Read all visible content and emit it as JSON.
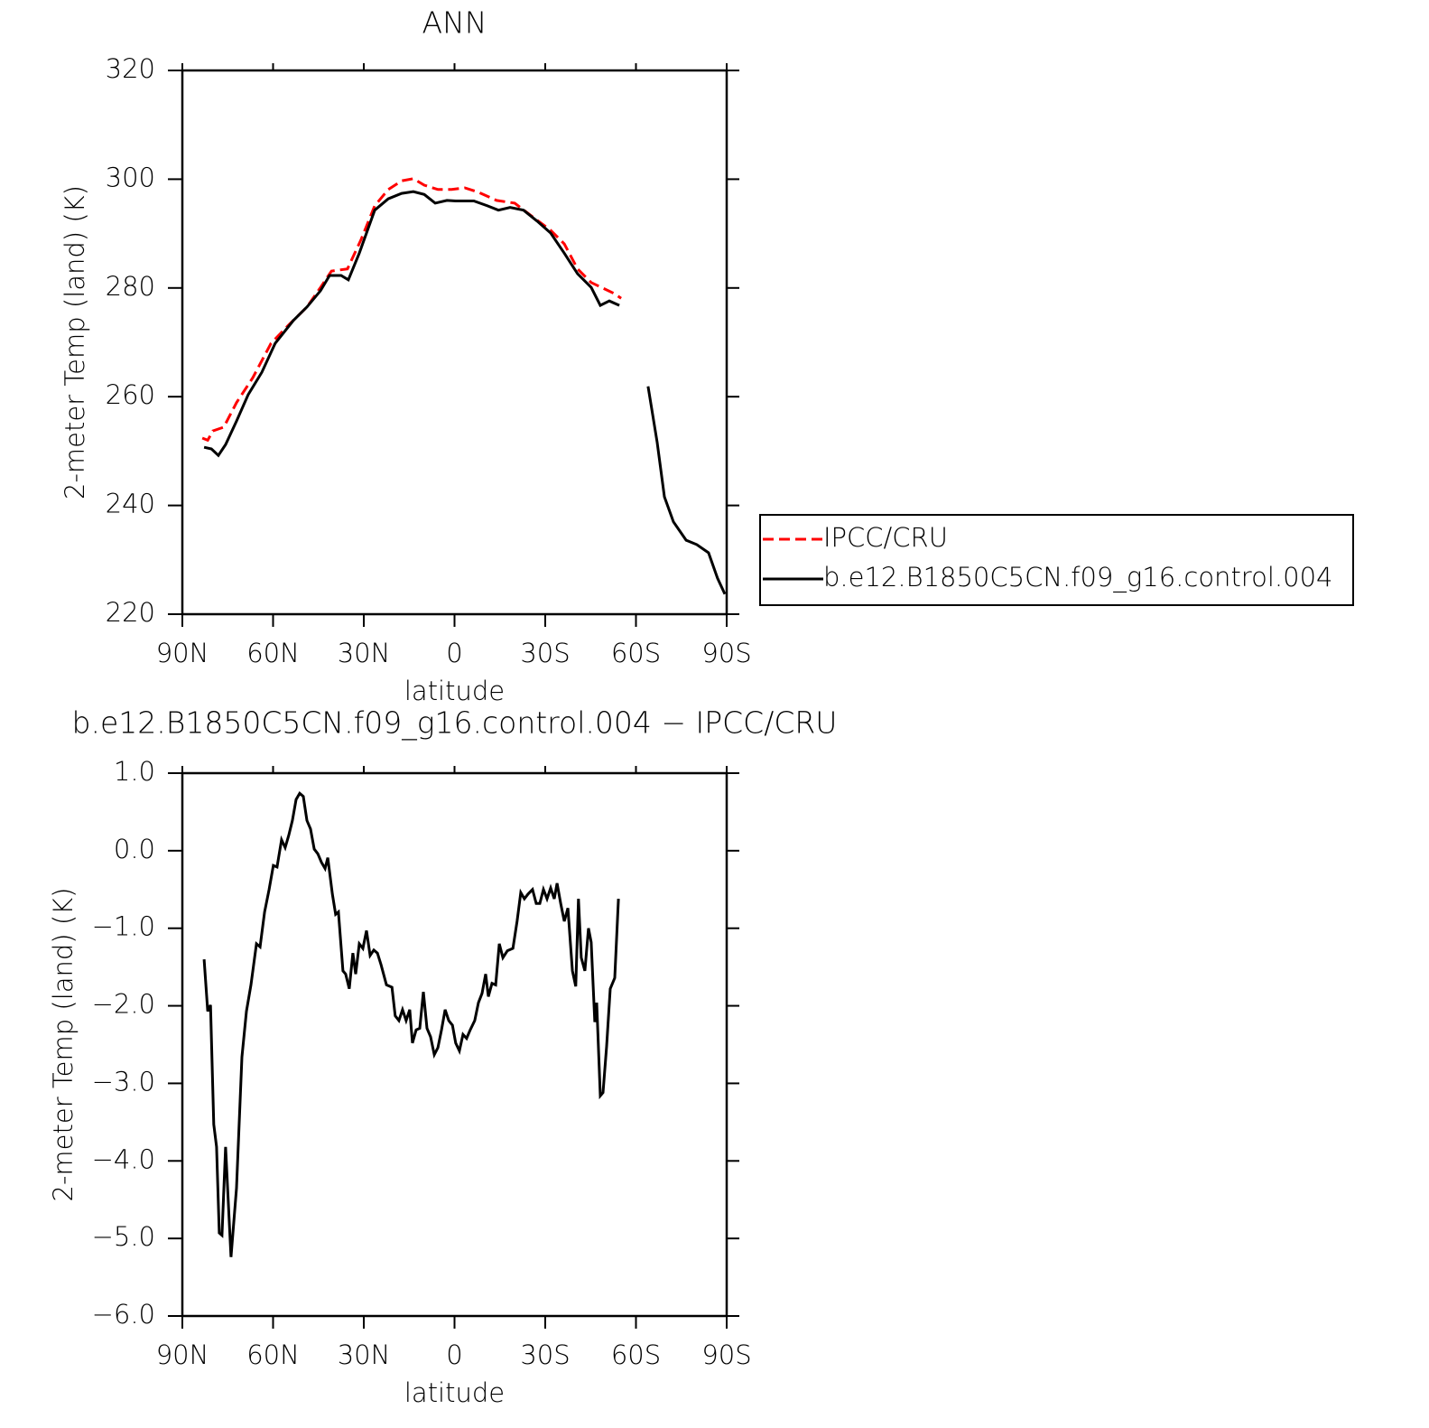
{
  "chart_data": [
    {
      "type": "line",
      "title": "ANN",
      "x_label": "latitude",
      "y_label": "2-meter Temp (land) (K)",
      "xlim": [
        90,
        -90
      ],
      "xticks": [
        {
          "value": 90,
          "label": "90N"
        },
        {
          "value": 60,
          "label": "60N"
        },
        {
          "value": 30,
          "label": "30N"
        },
        0,
        {
          "value": -30,
          "label": "30S"
        },
        {
          "value": -60,
          "label": "60S"
        },
        {
          "value": -90,
          "label": "90S"
        }
      ],
      "ylim": [
        220,
        320
      ],
      "yticks": [
        220,
        240,
        260,
        280,
        300,
        320
      ],
      "legend": "right",
      "series": [
        {
          "name": "IPCC/CRU",
          "color": "#ff0000",
          "dash": true,
          "x": [
            83.4,
            81.6,
            79.9,
            76.3,
            72.1,
            66.7,
            60.7,
            54.8,
            48.8,
            44.3,
            40.7,
            35.4,
            30.9,
            26.4,
            21.9,
            17.5,
            13.6,
            10.0,
            5.5,
            1.0,
            -3.4,
            -7.9,
            -13.9,
            -19.9,
            -25.8,
            -31.8,
            -36.3,
            -40.7,
            -45.2,
            -49.7,
            -52.7,
            -55.1
          ],
          "values": [
            252.4,
            252.0,
            253.7,
            254.4,
            258.9,
            263.5,
            269.8,
            273.2,
            276.5,
            280.1,
            283.1,
            283.5,
            288.9,
            295.1,
            298.1,
            299.7,
            300.1,
            298.9,
            298.1,
            298.1,
            298.4,
            297.6,
            296.1,
            295.6,
            293.1,
            290.6,
            288.1,
            283.5,
            281.0,
            279.8,
            279.0,
            278.1
          ]
        },
        {
          "name": "b.e12.B1850C5CN.f09_g16.control.004",
          "color": "#000000",
          "dash": false,
          "x": [
            82.8,
            80.4,
            78.1,
            75.7,
            72.1,
            68.2,
            63.7,
            59.3,
            53.3,
            48.8,
            44.3,
            41.3,
            37.5,
            35.1,
            31.5,
            26.4,
            21.9,
            17.5,
            13.6,
            10.0,
            6.4,
            2.5,
            -0.4,
            -6.4,
            -10.9,
            -14.5,
            -18.4,
            -22.8,
            -27.3,
            -31.8,
            -36.3,
            -40.7,
            -45.2,
            -48.2,
            -51.2,
            -54.5,
            null,
            -64.0,
            -67.0,
            -69.4,
            -72.4,
            -76.6,
            -80.1,
            -84.0,
            -87.0,
            -89.4
          ],
          "values": [
            250.7,
            250.4,
            249.2,
            251.2,
            255.5,
            260.4,
            264.5,
            269.8,
            274.0,
            276.5,
            279.5,
            282.3,
            282.3,
            281.5,
            286.4,
            294.3,
            296.4,
            297.4,
            297.7,
            297.2,
            295.6,
            296.1,
            296.0,
            296.0,
            295.1,
            294.3,
            294.8,
            294.3,
            292.3,
            290.1,
            286.4,
            282.6,
            280.1,
            276.8,
            277.6,
            276.8,
            null,
            261.9,
            251.6,
            241.6,
            237.0,
            233.6,
            232.8,
            231.3,
            226.6,
            223.7
          ]
        }
      ]
    },
    {
      "type": "line",
      "title": "b.e12.B1850C5CN.f09_g16.control.004 − IPCC/CRU",
      "x_label": "latitude",
      "y_label": "2-meter Temp (land) (K)",
      "xlim": [
        90,
        -90
      ],
      "xticks": [
        {
          "value": 90,
          "label": "90N"
        },
        {
          "value": 60,
          "label": "60N"
        },
        {
          "value": 30,
          "label": "30N"
        },
        0,
        {
          "value": -30,
          "label": "30S"
        },
        {
          "value": -60,
          "label": "60S"
        },
        {
          "value": -90,
          "label": "90S"
        }
      ],
      "ylim": [
        -6,
        1
      ],
      "yticks": [
        {
          "value": -6,
          "label": "−6.0"
        },
        {
          "value": -5,
          "label": "−5.0"
        },
        {
          "value": -4,
          "label": "−4.0"
        },
        {
          "value": -3,
          "label": "−3.0"
        },
        {
          "value": -2,
          "label": "−2.0"
        },
        {
          "value": -1,
          "label": "−1.0"
        },
        {
          "value": 0,
          "label": "0.0"
        },
        {
          "value": 1,
          "label": "1.0"
        }
      ],
      "series": [
        {
          "color": "#000000",
          "dash": false,
          "x": [
            82.8,
            81.6,
            80.7,
            79.6,
            78.7,
            77.8,
            76.9,
            75.7,
            73.9,
            72.1,
            70.3,
            68.8,
            67.3,
            65.5,
            64.3,
            62.8,
            61.3,
            59.9,
            58.7,
            57.2,
            56.0,
            54.8,
            53.6,
            52.4,
            51.2,
            50.0,
            48.8,
            47.6,
            46.4,
            45.2,
            44.0,
            42.8,
            41.9,
            40.4,
            39.3,
            38.4,
            36.9,
            36.0,
            34.8,
            33.6,
            32.7,
            31.5,
            30.3,
            29.1,
            27.9,
            26.7,
            25.5,
            24.3,
            22.5,
            20.7,
            19.6,
            18.4,
            17.2,
            16.0,
            14.8,
            13.9,
            12.7,
            11.5,
            10.3,
            9.1,
            7.9,
            6.7,
            5.5,
            4.3,
            3.1,
            1.9,
            0.7,
            -0.4,
            -1.6,
            -2.8,
            -4.0,
            -5.2,
            -6.7,
            -7.9,
            -9.1,
            -10.3,
            -11.2,
            -12.4,
            -13.6,
            -14.8,
            -16.0,
            -17.5,
            -19.3,
            -20.7,
            -21.9,
            -23.1,
            -24.3,
            -25.8,
            -27.0,
            -28.2,
            -29.4,
            -30.6,
            -31.8,
            -33.0,
            -33.9,
            -35.1,
            -36.3,
            -37.5,
            -39.0,
            -40.1,
            -41.0,
            -41.9,
            -43.1,
            -44.3,
            -45.2,
            -46.4,
            -47.0,
            -48.2,
            -49.1,
            -50.3,
            -51.5,
            -53.0,
            -54.2
          ],
          "values": [
            -1.4,
            -2.07,
            -1.99,
            -3.53,
            -3.82,
            -4.93,
            -4.96,
            -3.82,
            -5.24,
            -4.35,
            -2.66,
            -2.07,
            -1.73,
            -1.2,
            -1.24,
            -0.79,
            -0.5,
            -0.19,
            -0.21,
            0.14,
            0.04,
            0.2,
            0.39,
            0.66,
            0.74,
            0.7,
            0.39,
            0.28,
            0.02,
            -0.04,
            -0.15,
            -0.23,
            -0.09,
            -0.56,
            -0.82,
            -0.79,
            -1.55,
            -1.59,
            -1.78,
            -1.32,
            -1.59,
            -1.2,
            -1.26,
            -1.03,
            -1.35,
            -1.28,
            -1.32,
            -1.47,
            -1.73,
            -1.76,
            -2.13,
            -2.19,
            -2.05,
            -2.19,
            -2.05,
            -2.48,
            -2.31,
            -2.29,
            -1.82,
            -2.29,
            -2.4,
            -2.63,
            -2.54,
            -2.31,
            -2.05,
            -2.19,
            -2.25,
            -2.48,
            -2.58,
            -2.37,
            -2.42,
            -2.31,
            -2.19,
            -1.96,
            -1.84,
            -1.59,
            -1.88,
            -1.71,
            -1.73,
            -1.2,
            -1.38,
            -1.29,
            -1.26,
            -0.91,
            -0.54,
            -0.62,
            -0.56,
            -0.5,
            -0.68,
            -0.68,
            -0.5,
            -0.62,
            -0.48,
            -0.62,
            -0.42,
            -0.68,
            -0.91,
            -0.74,
            -1.55,
            -1.75,
            -0.62,
            -1.38,
            -1.55,
            -1.0,
            -1.18,
            -2.21,
            -1.96,
            -3.16,
            -3.12,
            -2.52,
            -1.78,
            -1.64,
            -0.62
          ]
        }
      ]
    }
  ]
}
